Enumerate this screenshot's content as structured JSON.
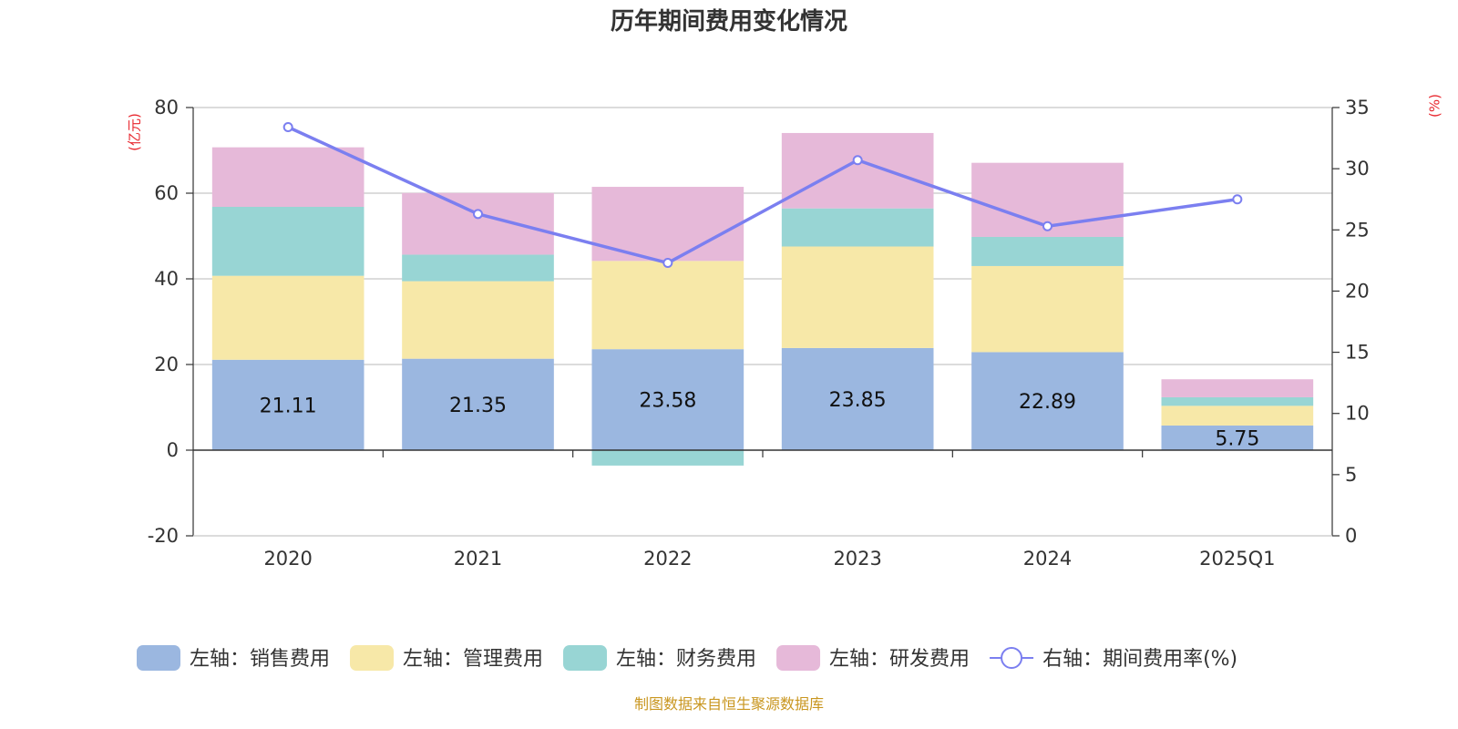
{
  "chart_data": {
    "type": "bar",
    "title": "历年期间费用变化情况",
    "categories": [
      "2020",
      "2021",
      "2022",
      "2023",
      "2024",
      "2025Q1"
    ],
    "stacked": true,
    "series": [
      {
        "name": "左轴：销售费用",
        "axis": "left",
        "color": "#9bb7e0",
        "values": [
          21.11,
          21.35,
          23.58,
          23.85,
          22.89,
          5.75
        ],
        "labels": [
          "21.11",
          "21.35",
          "23.58",
          "23.85",
          "22.89",
          "5.75"
        ]
      },
      {
        "name": "左轴：管理费用",
        "axis": "left",
        "color": "#f7e8a8",
        "values": [
          19.6,
          18.1,
          20.6,
          23.7,
          20.1,
          4.6
        ]
      },
      {
        "name": "左轴：财务费用",
        "axis": "left",
        "color": "#98d5d4",
        "values": [
          16.1,
          6.2,
          -3.6,
          8.9,
          6.8,
          2.0
        ]
      },
      {
        "name": "左轴：研发费用",
        "axis": "left",
        "color": "#e6b9d9",
        "values": [
          13.9,
          14.4,
          17.3,
          17.6,
          17.3,
          4.2
        ]
      }
    ],
    "line_series": {
      "name": "右轴：期间费用率(%)",
      "axis": "right",
      "color": "#7b7ff0",
      "values": [
        33.4,
        26.3,
        22.3,
        30.7,
        25.3,
        27.5
      ]
    },
    "left_axis": {
      "unit": "(亿元)",
      "ylim": [
        -20,
        80
      ],
      "ticks": [
        -20,
        0,
        20,
        40,
        60,
        80
      ]
    },
    "right_axis": {
      "unit": "(%)",
      "ylim": [
        0,
        35
      ],
      "ticks": [
        0,
        5,
        10,
        15,
        20,
        25,
        30,
        35
      ]
    },
    "legend_position": "bottom",
    "source": "制图数据来自恒生聚源数据库"
  }
}
